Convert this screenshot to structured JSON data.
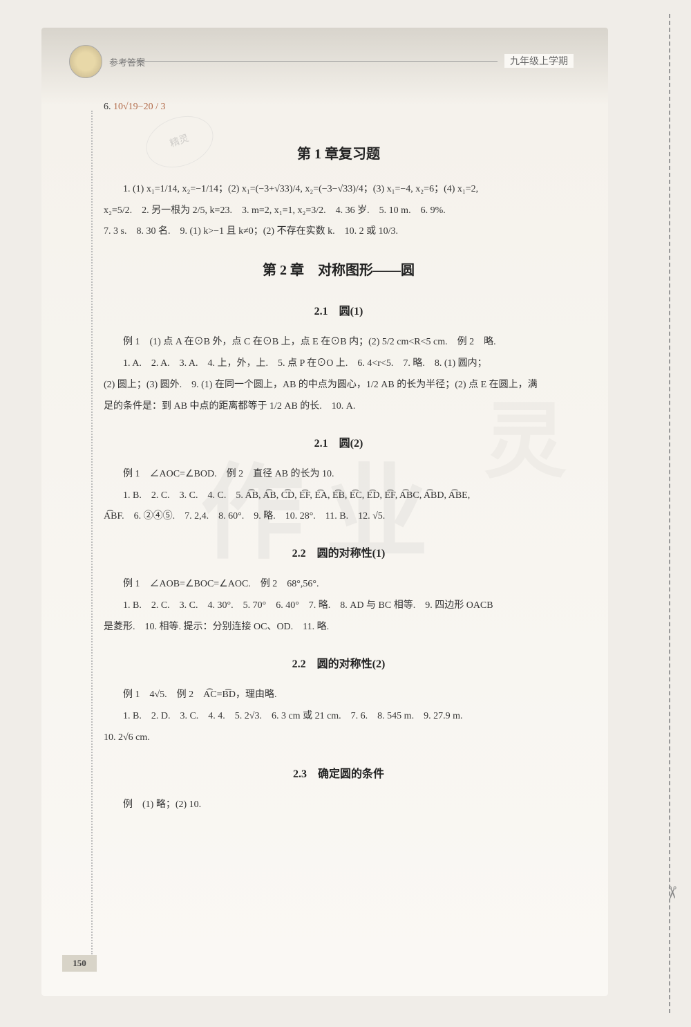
{
  "header": {
    "left_label": "参考答案",
    "right_label": "九年级上学期"
  },
  "q6": {
    "num": "6.",
    "expr": "10√19−20 / 3",
    "stamp_text": "精灵"
  },
  "chapter1_review": {
    "title": "第 1 章复习题",
    "line1": "1. (1) x₁=1/14, x₂=−1/14；(2) x₁=(−3+√33)/4, x₂=(−3−√33)/4；(3) x₁=−4, x₂=6；(4) x₁=2,",
    "line2": "x₂=5/2.　2. 另一根为 2/5, k=23.　3. m=2, x₁=1, x₂=3/2.　4. 36 岁.　5. 10 m.　6. 9%.",
    "line3": "7. 3 s.　8. 30 名.　9. (1) k>−1 且 k≠0；(2) 不存在实数 k.　10. 2 或 10/3."
  },
  "chapter2": {
    "title": "第 2 章　对称图形——圆"
  },
  "s2_1_1": {
    "title": "2.1　圆(1)",
    "ex": "例 1　(1) 点 A 在⊙B 外，点 C 在⊙B 上，点 E 在⊙B 内；(2) 5/2 cm<R<5 cm.　例 2　略.",
    "line1": "1. A.　2. A.　3. A.　4. 上，外，上.　5. 点 P 在⊙O 上.　6. 4<r<5.　7. 略.　8. (1) 圆内；",
    "line2": "(2) 圆上；(3) 圆外.　9. (1) 在同一个圆上，AB 的中点为圆心，1/2 AB 的长为半径；(2) 点 E 在圆上，满",
    "line3": "足的条件是：到 AB 中点的距离都等于 1/2 AB 的长.　10. A."
  },
  "s2_1_2": {
    "title": "2.1　圆(2)",
    "ex": "例 1　∠AOC=∠BOD.　例 2　直径 AB 的长为 10.",
    "line1": "1. B.　2. C.　3. C.　4. C.　5. A͡B, A͡B, C͡D, E͡F, E͡A, E͡B, E͡C, E͡D, E͡F, A͡BC, A͡BD, A͡BE,",
    "line2": "A͡BF.　6. ②④⑤.　7. 2,4.　8. 60°.　9. 略.　10. 28°.　11. B.　12. √5."
  },
  "s2_2_1": {
    "title": "2.2　圆的对称性(1)",
    "ex": "例 1　∠AOB=∠BOC=∠AOC.　例 2　68°,56°.",
    "line1": "1. B.　2. C.　3. C.　4. 30°.　5. 70°　6. 40°　7. 略.　8. AD 与 BC 相等.　9. 四边形 OACB",
    "line2": "是菱形.　10. 相等. 提示：分别连接 OC、OD.　11. 略."
  },
  "s2_2_2": {
    "title": "2.2　圆的对称性(2)",
    "ex": "例 1　4√5.　例 2　A͡C=B͡D，理由略.",
    "line1": "1. B.　2. D.　3. C.　4. 4.　5. 2√3.　6. 3 cm 或 21 cm.　7. 6.　8. 545 m.　9. 27.9 m.",
    "line2": "10. 2√6 cm."
  },
  "s2_3": {
    "title": "2.3　确定圆的条件",
    "ex": "例　(1) 略；(2) 10."
  },
  "page_number": "150",
  "colors": {
    "accent": "#b26b4a",
    "text": "#333333",
    "bg": "#f0ede8",
    "page_bg": "#faf8f4"
  }
}
